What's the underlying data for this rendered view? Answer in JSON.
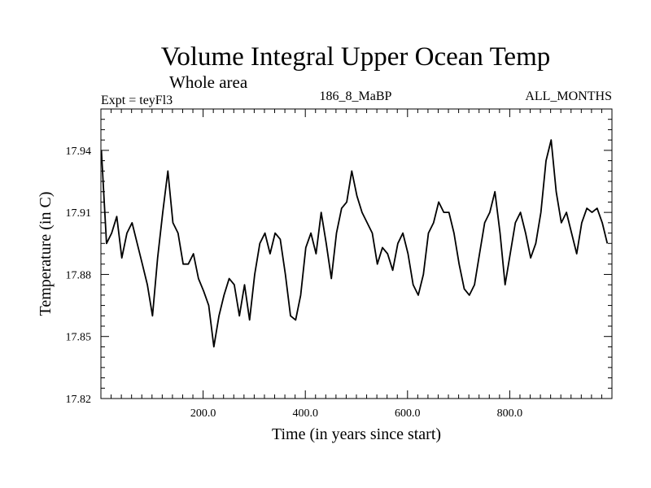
{
  "chart_data": {
    "type": "line",
    "title": "Volume Integral Upper Ocean Temp",
    "subtitle": "Whole area",
    "experiment": "Expt = teyFl3",
    "run_label": "186_8_MaBP",
    "months_label": "ALL_MONTHS",
    "xlabel": "Time (in years since start)",
    "ylabel": "Temperature (in C)",
    "xlim": [
      0,
      1000
    ],
    "ylim": [
      17.82,
      17.96
    ],
    "xticks": [
      200,
      400,
      600,
      800
    ],
    "xtick_labels": [
      "200.0",
      "400.0",
      "600.0",
      "800.0"
    ],
    "yticks": [
      17.82,
      17.85,
      17.88,
      17.91,
      17.94
    ],
    "ytick_labels": [
      "17.82",
      "17.85",
      "17.88",
      "17.91",
      "17.94"
    ],
    "series": [
      {
        "name": "Volume integral upper ocean temperature",
        "color": "#000000",
        "x_start": 1,
        "x_step": 10,
        "values": [
          17.94,
          17.895,
          17.9,
          17.908,
          17.888,
          17.9,
          17.905,
          17.895,
          17.885,
          17.875,
          17.86,
          17.888,
          17.91,
          17.93,
          17.905,
          17.9,
          17.885,
          17.885,
          17.89,
          17.878,
          17.872,
          17.865,
          17.845,
          17.86,
          17.87,
          17.878,
          17.875,
          17.86,
          17.875,
          17.858,
          17.88,
          17.895,
          17.9,
          17.89,
          17.9,
          17.897,
          17.88,
          17.86,
          17.858,
          17.87,
          17.893,
          17.9,
          17.89,
          17.91,
          17.895,
          17.878,
          17.9,
          17.912,
          17.915,
          17.93,
          17.918,
          17.91,
          17.905,
          17.9,
          17.885,
          17.893,
          17.89,
          17.882,
          17.895,
          17.9,
          17.89,
          17.875,
          17.87,
          17.88,
          17.9,
          17.905,
          17.915,
          17.91,
          17.91,
          17.9,
          17.885,
          17.873,
          17.87,
          17.875,
          17.89,
          17.905,
          17.91,
          17.92,
          17.9,
          17.875,
          17.89,
          17.905,
          17.91,
          17.9,
          17.888,
          17.895,
          17.91,
          17.935,
          17.945,
          17.92,
          17.905,
          17.91,
          17.9,
          17.89,
          17.905,
          17.912,
          17.91,
          17.912,
          17.905,
          17.895
        ]
      }
    ]
  }
}
